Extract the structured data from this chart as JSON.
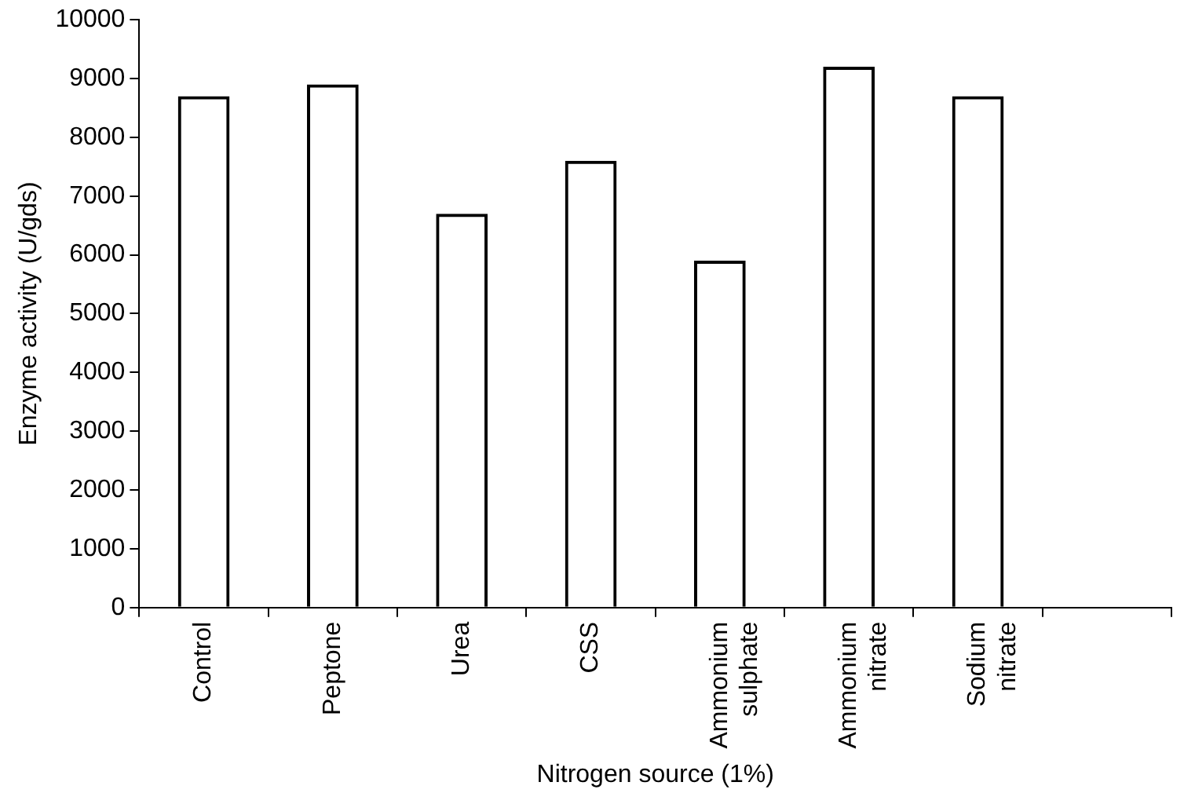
{
  "chart_data": {
    "type": "bar",
    "xlabel": "Nitrogen source (1%)",
    "ylabel": "Enzyme activity (U/gds)",
    "categories": [
      "Control",
      "Peptone",
      "Urea",
      "CSS",
      "Ammonium sulphate",
      "Ammonium nitrate",
      "Sodium nitrate",
      null
    ],
    "values": [
      8700,
      8900,
      6700,
      7600,
      5900,
      9200,
      8700,
      null
    ],
    "color": "#000000",
    "ylim": [
      0,
      10000
    ],
    "yticks": [
      0,
      1000,
      2000,
      3000,
      4000,
      5000,
      6000,
      7000,
      8000,
      9000,
      10000
    ],
    "grid": false,
    "legend": false
  }
}
